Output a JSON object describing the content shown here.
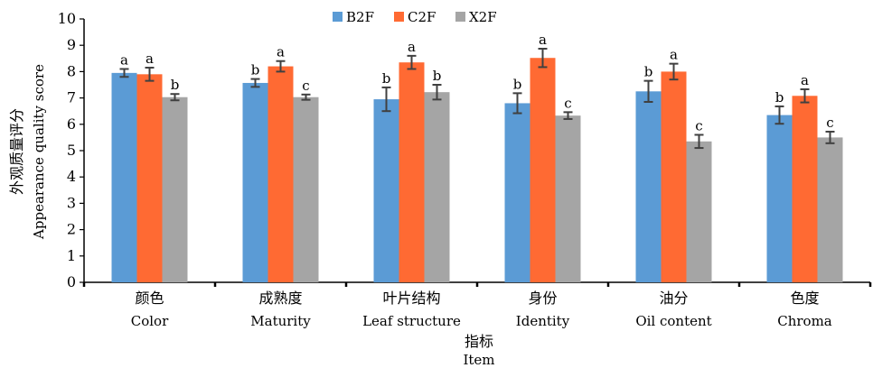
{
  "chart_data": {
    "type": "bar",
    "title": "",
    "ylabel_cn": "外观质量评分",
    "ylabel_en": "Appearance quality score",
    "xlabel_cn": "指标",
    "xlabel_en": "Item",
    "ylim": [
      0,
      10
    ],
    "yticks": [
      "0",
      "1",
      "2",
      "3",
      "4",
      "5",
      "6",
      "7",
      "8",
      "9",
      "10"
    ],
    "legend_position": "top-center",
    "grid": false,
    "categories": [
      {
        "cn": "颜色",
        "en": "Color"
      },
      {
        "cn": "成熟度",
        "en": "Maturity"
      },
      {
        "cn": "叶片结构",
        "en": "Leaf structure"
      },
      {
        "cn": "身份",
        "en": "Identity"
      },
      {
        "cn": "油分",
        "en": "Oil content"
      },
      {
        "cn": "色度",
        "en": "Chroma"
      }
    ],
    "series": [
      {
        "name": "B2F",
        "color": "#5b9bd5",
        "values": [
          7.95,
          7.57,
          6.95,
          6.8,
          7.25,
          6.35
        ],
        "errors": [
          0.15,
          0.15,
          0.45,
          0.38,
          0.4,
          0.33
        ],
        "letters": [
          "a",
          "b",
          "b",
          "b",
          "b",
          "b"
        ]
      },
      {
        "name": "C2F",
        "color": "#ff6a33",
        "values": [
          7.9,
          8.2,
          8.35,
          8.52,
          8.0,
          7.08
        ],
        "errors": [
          0.25,
          0.2,
          0.25,
          0.35,
          0.3,
          0.25
        ],
        "letters": [
          "a",
          "a",
          "a",
          "a",
          "a",
          "a"
        ]
      },
      {
        "name": "X2F",
        "color": "#a5a5a5",
        "values": [
          7.03,
          7.03,
          7.22,
          6.33,
          5.35,
          5.5
        ],
        "errors": [
          0.12,
          0.1,
          0.28,
          0.13,
          0.25,
          0.22
        ],
        "letters": [
          "b",
          "c",
          "b",
          "c",
          "c",
          "c"
        ]
      }
    ]
  }
}
